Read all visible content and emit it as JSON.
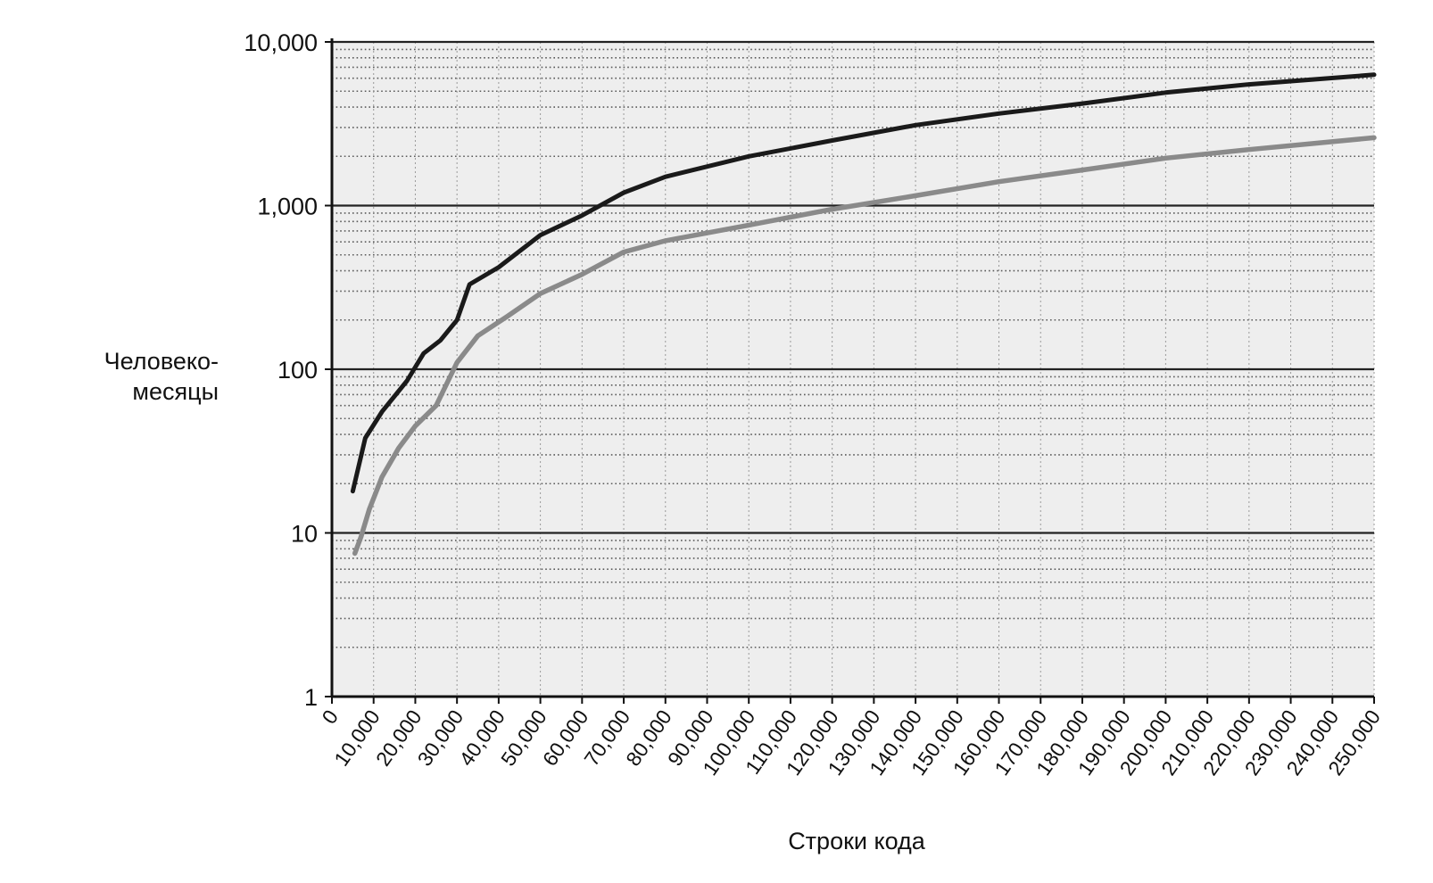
{
  "chart_data": {
    "type": "line",
    "xlabel": "Строки кода",
    "ylabel_lines": [
      "Человеко-",
      "месяцы"
    ],
    "y_scale": "log",
    "ylim": [
      1,
      10000
    ],
    "xlim": [
      0,
      250000
    ],
    "y_ticks": [
      {
        "value": 1,
        "label": "1"
      },
      {
        "value": 10,
        "label": "10"
      },
      {
        "value": 100,
        "label": "100"
      },
      {
        "value": 1000,
        "label": "1,000"
      },
      {
        "value": 10000,
        "label": "10,000"
      }
    ],
    "x_ticks": [
      {
        "value": 0,
        "label": "0"
      },
      {
        "value": 10000,
        "label": "10,000"
      },
      {
        "value": 20000,
        "label": "20,000"
      },
      {
        "value": 30000,
        "label": "30,000"
      },
      {
        "value": 40000,
        "label": "40,000"
      },
      {
        "value": 50000,
        "label": "50,000"
      },
      {
        "value": 60000,
        "label": "60,000"
      },
      {
        "value": 70000,
        "label": "70,000"
      },
      {
        "value": 80000,
        "label": "80,000"
      },
      {
        "value": 90000,
        "label": "90,000"
      },
      {
        "value": 100000,
        "label": "100,000"
      },
      {
        "value": 110000,
        "label": "110,000"
      },
      {
        "value": 120000,
        "label": "120,000"
      },
      {
        "value": 130000,
        "label": "130,000"
      },
      {
        "value": 140000,
        "label": "140,000"
      },
      {
        "value": 150000,
        "label": "150,000"
      },
      {
        "value": 160000,
        "label": "160,000"
      },
      {
        "value": 170000,
        "label": "170,000"
      },
      {
        "value": 180000,
        "label": "180,000"
      },
      {
        "value": 190000,
        "label": "190,000"
      },
      {
        "value": 200000,
        "label": "200,000"
      },
      {
        "value": 210000,
        "label": "210,000"
      },
      {
        "value": 220000,
        "label": "220,000"
      },
      {
        "value": 230000,
        "label": "230,000"
      },
      {
        "value": 240000,
        "label": "240,000"
      },
      {
        "value": 250000,
        "label": "250,000"
      }
    ],
    "grid": true,
    "series": [
      {
        "color": "#1a1a1a",
        "points": [
          [
            5000,
            18
          ],
          [
            8000,
            38
          ],
          [
            12000,
            55
          ],
          [
            18000,
            85
          ],
          [
            22000,
            125
          ],
          [
            26000,
            150
          ],
          [
            30000,
            200
          ],
          [
            33000,
            330
          ],
          [
            40000,
            420
          ],
          [
            50000,
            660
          ],
          [
            60000,
            870
          ],
          [
            70000,
            1200
          ],
          [
            80000,
            1500
          ],
          [
            100000,
            2000
          ],
          [
            120000,
            2500
          ],
          [
            140000,
            3100
          ],
          [
            160000,
            3650
          ],
          [
            180000,
            4200
          ],
          [
            200000,
            4900
          ],
          [
            220000,
            5500
          ],
          [
            250000,
            6300
          ]
        ]
      },
      {
        "color": "#8a8a8a",
        "points": [
          [
            5500,
            7.5
          ],
          [
            7000,
            9.5
          ],
          [
            9000,
            14
          ],
          [
            12000,
            22
          ],
          [
            16000,
            33
          ],
          [
            20000,
            45
          ],
          [
            25000,
            60
          ],
          [
            30000,
            110
          ],
          [
            35000,
            160
          ],
          [
            42000,
            210
          ],
          [
            50000,
            290
          ],
          [
            60000,
            380
          ],
          [
            70000,
            520
          ],
          [
            80000,
            610
          ],
          [
            100000,
            760
          ],
          [
            120000,
            950
          ],
          [
            140000,
            1150
          ],
          [
            160000,
            1400
          ],
          [
            180000,
            1650
          ],
          [
            200000,
            1950
          ],
          [
            220000,
            2200
          ],
          [
            250000,
            2600
          ]
        ]
      }
    ]
  }
}
